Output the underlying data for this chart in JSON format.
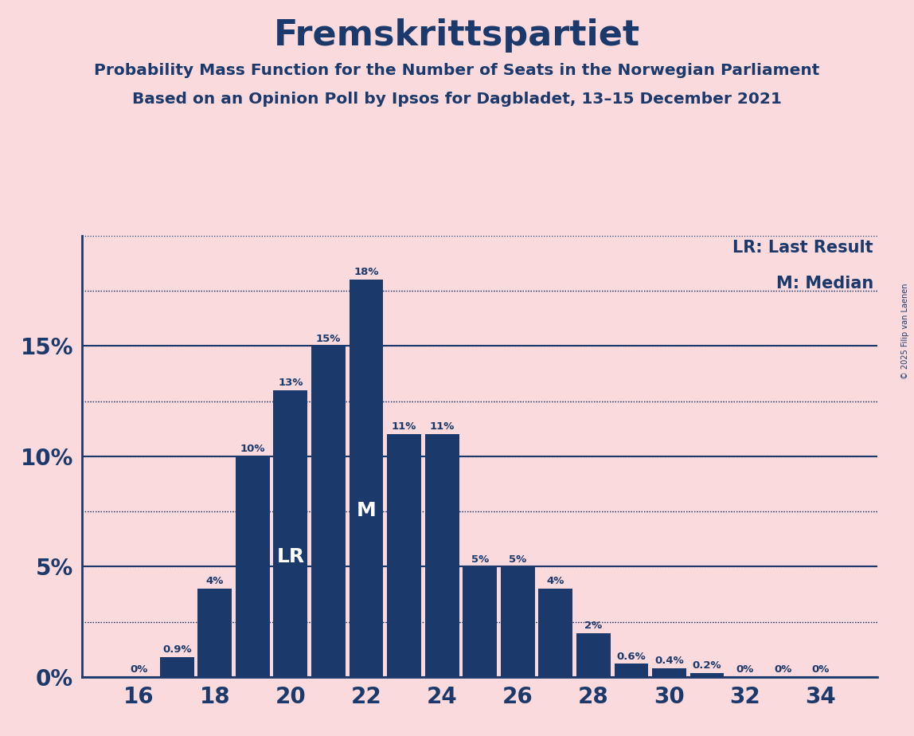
{
  "title": "Fremskrittspartiet",
  "subtitle1": "Probability Mass Function for the Number of Seats in the Norwegian Parliament",
  "subtitle2": "Based on an Opinion Poll by Ipsos for Dagbladet, 13–15 December 2021",
  "copyright": "© 2025 Filip van Laenen",
  "legend_lr": "LR: Last Result",
  "legend_m": "M: Median",
  "background_color": "#FADADD",
  "bar_color": "#1B3A6B",
  "title_color": "#1B3A6B",
  "seats": [
    16,
    17,
    18,
    19,
    20,
    21,
    22,
    23,
    24,
    25,
    26,
    27,
    28,
    29,
    30,
    31,
    32,
    33,
    34
  ],
  "probabilities": [
    0.0,
    0.009,
    0.04,
    0.1,
    0.13,
    0.15,
    0.18,
    0.11,
    0.11,
    0.05,
    0.05,
    0.04,
    0.02,
    0.006,
    0.004,
    0.002,
    0.0,
    0.0,
    0.0
  ],
  "labels": [
    "0%",
    "0.9%",
    "4%",
    "10%",
    "13%",
    "15%",
    "18%",
    "11%",
    "11%",
    "5%",
    "5%",
    "4%",
    "2%",
    "0.6%",
    "0.4%",
    "0.2%",
    "0%",
    "0%",
    "0%"
  ],
  "lr_seat": 20,
  "median_seat": 22,
  "yticks": [
    0.0,
    0.05,
    0.1,
    0.15
  ],
  "ytick_labels": [
    "0%",
    "5%",
    "10%",
    "15%"
  ],
  "xtick_seats": [
    16,
    18,
    20,
    22,
    24,
    26,
    28,
    30,
    32,
    34
  ],
  "ylim": [
    0,
    0.2
  ],
  "xlim": [
    14.5,
    35.5
  ]
}
